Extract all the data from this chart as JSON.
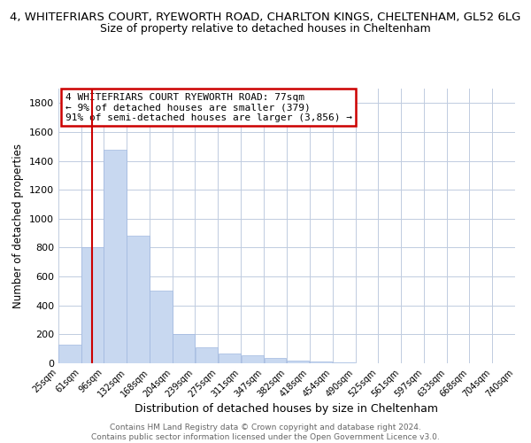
{
  "title_line1": "4, WHITEFRIARS COURT, RYEWORTH ROAD, CHARLTON KINGS, CHELTENHAM, GL52 6LG",
  "title_line2": "Size of property relative to detached houses in Cheltenham",
  "xlabel": "Distribution of detached houses by size in Cheltenham",
  "ylabel": "Number of detached properties",
  "bar_left_edges": [
    25,
    61,
    96,
    132,
    168,
    204,
    239,
    275,
    311,
    347,
    382,
    418,
    454,
    490,
    525,
    561,
    597,
    633,
    668,
    704
  ],
  "bar_widths": [
    36,
    35,
    36,
    36,
    36,
    35,
    36,
    36,
    36,
    35,
    36,
    36,
    36,
    35,
    36,
    36,
    36,
    35,
    36,
    36
  ],
  "bar_heights": [
    130,
    800,
    1480,
    880,
    500,
    200,
    110,
    70,
    55,
    35,
    20,
    12,
    5,
    3,
    2,
    1,
    1,
    0,
    0,
    0
  ],
  "bar_color": "#c8d8f0",
  "bar_edge_color": "#a0b8e0",
  "property_size": 77,
  "red_line_color": "#cc0000",
  "ylim": [
    0,
    1900
  ],
  "yticks": [
    0,
    200,
    400,
    600,
    800,
    1000,
    1200,
    1400,
    1600,
    1800
  ],
  "xtick_labels": [
    "25sqm",
    "61sqm",
    "96sqm",
    "132sqm",
    "168sqm",
    "204sqm",
    "239sqm",
    "275sqm",
    "311sqm",
    "347sqm",
    "382sqm",
    "418sqm",
    "454sqm",
    "490sqm",
    "525sqm",
    "561sqm",
    "597sqm",
    "633sqm",
    "668sqm",
    "704sqm",
    "740sqm"
  ],
  "xtick_positions": [
    25,
    61,
    96,
    132,
    168,
    204,
    239,
    275,
    311,
    347,
    382,
    418,
    454,
    490,
    525,
    561,
    597,
    633,
    668,
    704,
    740
  ],
  "annotation_line1": "4 WHITEFRIARS COURT RYEWORTH ROAD: 77sqm",
  "annotation_line2": "← 9% of detached houses are smaller (379)",
  "annotation_line3": "91% of semi-detached houses are larger (3,856) →",
  "annotation_box_color": "#cc0000",
  "footer_line1": "Contains HM Land Registry data © Crown copyright and database right 2024.",
  "footer_line2": "Contains public sector information licensed under the Open Government Licence v3.0.",
  "bg_color": "#ffffff",
  "grid_color": "#c0cce0",
  "title1_fontsize": 9.5,
  "title2_fontsize": 9,
  "ylabel_fontsize": 8.5,
  "xlabel_fontsize": 9,
  "annotation_fontsize": 8,
  "footer_fontsize": 6.5
}
